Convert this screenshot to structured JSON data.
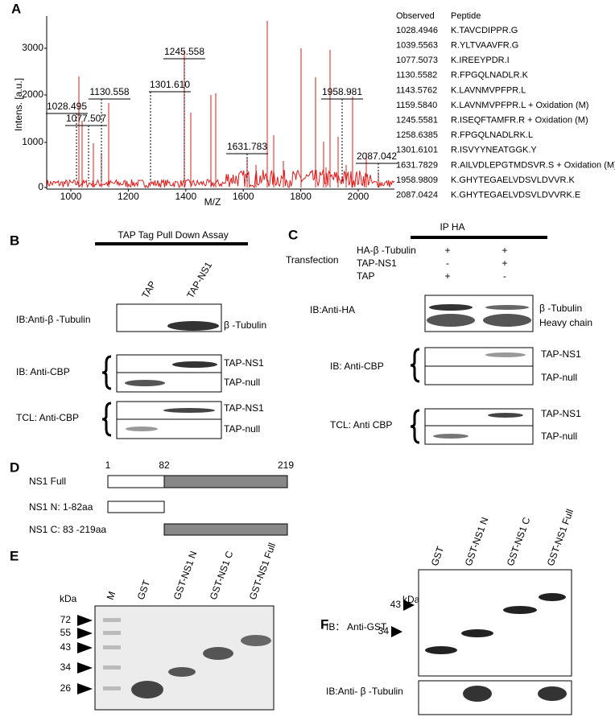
{
  "panel_a": {
    "label": "A",
    "y_axis_title": "Intens. [a.u.]",
    "x_axis_title": "M/Z",
    "y_ticks": [
      "0",
      "1000",
      "2000",
      "3000"
    ],
    "x_ticks": [
      "1000",
      "1200",
      "1400",
      "1600",
      "1800",
      "2000"
    ],
    "peak_labels": [
      "1028.495",
      "1077.507",
      "1130.558",
      "1245.558",
      "1301.610",
      "1631.783",
      "1958.981",
      "2087.042"
    ],
    "table": {
      "header": [
        "Observed",
        "Peptide"
      ],
      "rows": [
        [
          "1028.4946",
          "K.TAVCDIPPR.G"
        ],
        [
          "1039.5563",
          "R.YLTVAAVFR.G"
        ],
        [
          "1077.5073",
          "K.IREEYPDR.I"
        ],
        [
          "1130.5582",
          "R.FPGQLNADLR.K"
        ],
        [
          "1143.5762",
          "K.LAVNMVPFPR.L"
        ],
        [
          "1159.5840",
          "K.LAVNMVPFPR.L + Oxidation (M)"
        ],
        [
          "1245.5581",
          "R.ISEQFTAMFR.R + Oxidation (M)"
        ],
        [
          "1258.6385",
          "R.FPGQLNADLRK.L"
        ],
        [
          "1301.6101",
          "R.ISVYYNEATGGK.Y"
        ],
        [
          "1631.7829",
          "R.AILVDLEPGTMDSVR.S + Oxidation (M)"
        ],
        [
          "1958.9809",
          "K.GHYTEGAELVDSVLDVVR.K"
        ],
        [
          "2087.0424",
          "K.GHYTEGAELVDSVLDVVRK.E"
        ]
      ]
    }
  },
  "panel_b": {
    "label": "B",
    "title": "TAP Tag Pull Down Assay",
    "lanes": [
      "TAP",
      "TAP-NS1"
    ],
    "blot1_label": "IB:Anti-β -Tubulin",
    "blot1_band": "β -Tubulin",
    "blot2_label": "IB: Anti-CBP",
    "blot2_bands": [
      "TAP-NS1",
      "TAP-null"
    ],
    "blot3_label": "TCL: Anti-CBP",
    "blot3_bands": [
      "TAP-NS1",
      "TAP-null"
    ]
  },
  "panel_c": {
    "label": "C",
    "title": "IP HA",
    "transfection": "Transfection",
    "rows": [
      {
        "name": "HA-β -Tubulin",
        "signs": [
          "+",
          "+"
        ]
      },
      {
        "name": "TAP-NS1",
        "signs": [
          "-",
          "+"
        ]
      },
      {
        "name": "TAP",
        "signs": [
          "+",
          "-"
        ]
      }
    ],
    "blot1_label": "IB:Anti-HA",
    "blot1_bands": [
      "β -Tubulin",
      "Heavy chain"
    ],
    "blot2_label": "IB: Anti-CBP",
    "blot2_bands": [
      "TAP-NS1",
      "TAP-null"
    ],
    "blot3_label": "TCL: Anti CBP",
    "blot3_bands": [
      "TAP-NS1",
      "TAP-null"
    ]
  },
  "panel_d": {
    "label": "D",
    "positions": [
      "1",
      "82",
      "219"
    ],
    "constructs": [
      "NS1 Full",
      "NS1 N: 1-82aa",
      "NS1 C: 83 -219aa"
    ]
  },
  "panel_e": {
    "label": "E",
    "kda": "kDa",
    "lanes": [
      "M",
      "GST",
      "GST-NS1 N",
      "GST-NS1 C",
      "GST-NS1 Full"
    ],
    "markers": [
      "72",
      "55",
      "43",
      "34",
      "26"
    ]
  },
  "panel_f": {
    "label": "F",
    "kda": "kDa",
    "lanes": [
      "GST",
      "GST-NS1 N",
      "GST-NS1 C",
      "GST-NS1 Full"
    ],
    "markers": [
      "43",
      "34"
    ],
    "blot1_label": "IB： Anti-GST",
    "blot2_label": "IB:Anti- β -Tubulin"
  }
}
